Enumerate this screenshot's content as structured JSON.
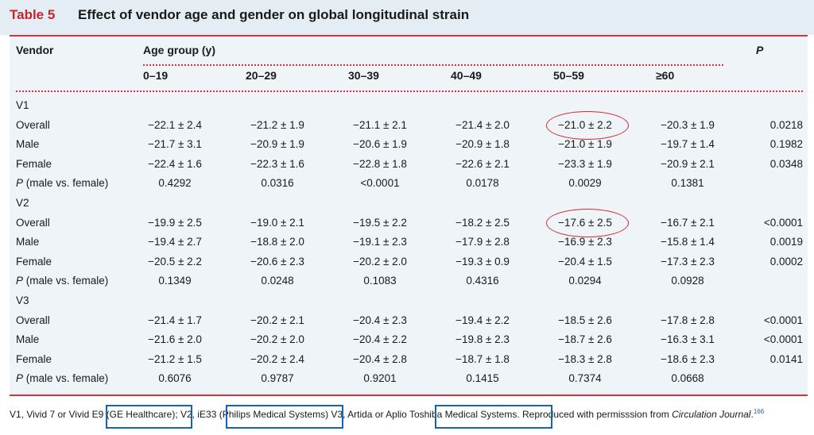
{
  "title": {
    "label": "Table 5",
    "text": "Effect of vendor age and gender on global longitudinal strain"
  },
  "headers": {
    "vendor": "Vendor",
    "age_group": "Age group (y)",
    "p": "P",
    "ages": [
      "0–19",
      "20–29",
      "30–39",
      "40–49",
      "50–59",
      "≥60"
    ]
  },
  "groups": [
    {
      "name": "V1",
      "rows": [
        {
          "label": "Overall",
          "values": [
            "−22.1 ± 2.4",
            "−21.2 ± 1.9",
            "−21.1 ± 2.1",
            "−21.4 ± 2.0",
            "−21.0 ± 2.2",
            "−20.3 ± 1.9"
          ],
          "p": "0.0218"
        },
        {
          "label": "Male",
          "values": [
            "−21.7 ± 3.1",
            "−20.9 ± 1.9",
            "−20.6 ± 1.9",
            "−20.9 ± 1.8",
            "−21.0 ± 1.9",
            "−19.7 ± 1.4"
          ],
          "p": "0.1982"
        },
        {
          "label": "Female",
          "values": [
            "−22.4 ± 1.6",
            "−22.3 ± 1.6",
            "−22.8 ± 1.8",
            "−22.6 ± 2.1",
            "−23.3 ± 1.9",
            "−20.9 ± 2.1"
          ],
          "p": "0.0348"
        },
        {
          "label_p": "P",
          "label_rest": " (male vs. female)",
          "values": [
            "0.4292",
            "0.0316",
            "<0.0001",
            "0.0178",
            "0.0029",
            "0.1381"
          ],
          "p": ""
        }
      ]
    },
    {
      "name": "V2",
      "rows": [
        {
          "label": "Overall",
          "values": [
            "−19.9 ± 2.5",
            "−19.0 ± 2.1",
            "−19.5 ± 2.2",
            "−18.2 ± 2.5",
            "−17.6 ± 2.5",
            "−16.7 ± 2.1"
          ],
          "p": "<0.0001"
        },
        {
          "label": "Male",
          "values": [
            "−19.4 ± 2.7",
            "−18.8 ± 2.0",
            "−19.1 ± 2.3",
            "−17.9 ± 2.8",
            "−16.9 ± 2.3",
            "−15.8 ± 1.4"
          ],
          "p": "0.0019"
        },
        {
          "label": "Female",
          "values": [
            "−20.5 ± 2.2",
            "−20.6 ± 2.3",
            "−20.2 ± 2.0",
            "−19.3 ± 0.9",
            "−20.4 ± 1.5",
            "−17.3 ± 2.3"
          ],
          "p": "0.0002"
        },
        {
          "label_p": "P",
          "label_rest": " (male vs. female)",
          "values": [
            "0.1349",
            "0.0248",
            "0.1083",
            "0.4316",
            "0.0294",
            "0.0928"
          ],
          "p": ""
        }
      ]
    },
    {
      "name": "V3",
      "rows": [
        {
          "label": "Overall",
          "values": [
            "−21.4 ± 1.7",
            "−20.2 ± 2.1",
            "−20.4 ± 2.3",
            "−19.4 ± 2.2",
            "−18.5 ± 2.6",
            "−17.8 ± 2.8"
          ],
          "p": "<0.0001"
        },
        {
          "label": "Male",
          "values": [
            "−21.6 ± 2.0",
            "−20.2 ± 2.0",
            "−20.4 ± 2.2",
            "−19.8 ± 2.3",
            "−18.7 ± 2.6",
            "−16.3 ± 3.1"
          ],
          "p": "<0.0001"
        },
        {
          "label": "Female",
          "values": [
            "−21.2 ± 1.5",
            "−20.2 ± 2.4",
            "−20.4 ± 2.8",
            "−18.7 ± 1.8",
            "−18.3 ± 2.8",
            "−18.6 ± 2.3"
          ],
          "p": "0.0141"
        },
        {
          "label_p": "P",
          "label_rest": " (male vs. female)",
          "values": [
            "0.6076",
            "0.9787",
            "0.9201",
            "0.1415",
            "0.7374",
            "0.0668"
          ],
          "p": ""
        }
      ]
    }
  ],
  "footnote": {
    "part1": "V1, Vivid 7 or Vivid E9",
    "ge": "(GE Healthcare);",
    "part2": " V2, iE33",
    "philips": "(Philips Medical Systems)",
    "part3": " V3, Artida or Aplio ",
    "toshiba": "Toshiba Medical Systems",
    "part4": ". Reproduced with permisssion from ",
    "journal": "Circulation Journal",
    "ref": "166"
  },
  "colors": {
    "accent_red": "#d6333a",
    "highlight_blue": "#1764ae",
    "table_bg": "#eef4f8"
  }
}
